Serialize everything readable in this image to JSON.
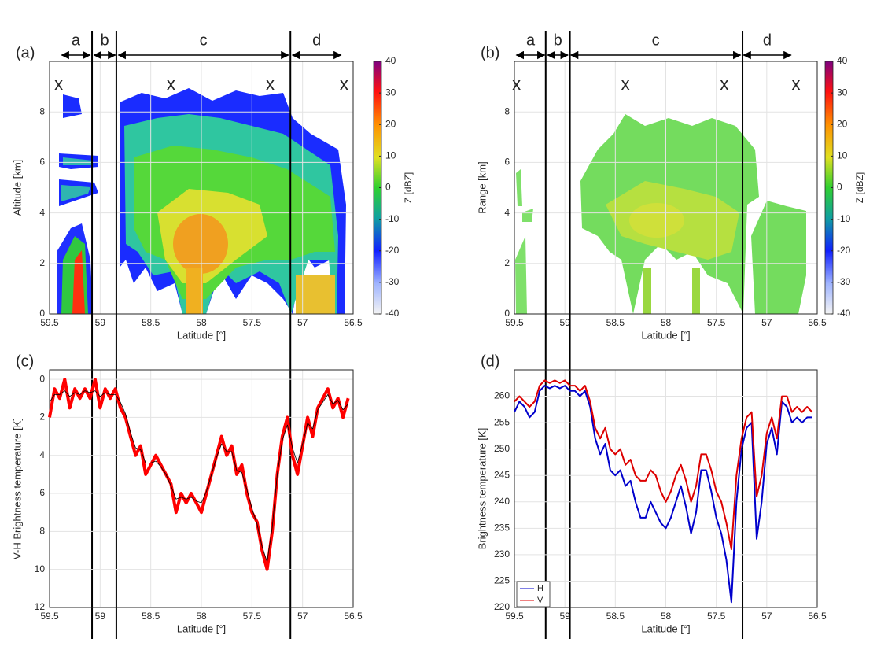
{
  "chart_data": [
    {
      "type": "heatmap",
      "title": "(a)",
      "xlabel": "Latitude [°]",
      "ylabel": "Altitude [km]",
      "xlim": [
        59.5,
        56.5
      ],
      "xticks": [
        59.5,
        59,
        58.5,
        58,
        57.5,
        57,
        56.5
      ],
      "ylim": [
        0,
        10
      ],
      "yticks": [
        0,
        2,
        4,
        6,
        8
      ],
      "grid": true,
      "colorbar": {
        "label": "Z [dBZ]",
        "lim": [
          -40,
          40
        ],
        "ticks": [
          -40,
          -30,
          -20,
          -10,
          0,
          10,
          20,
          30,
          40
        ]
      },
      "segments": [
        {
          "label": "a",
          "from": 59.38,
          "to": 59.1
        },
        {
          "label": "b",
          "from": 59.06,
          "to": 58.85
        },
        {
          "label": "c",
          "from": 58.82,
          "to": 57.14
        },
        {
          "label": "d",
          "from": 57.1,
          "to": 56.62
        }
      ],
      "boundaries": [
        59.08,
        58.84,
        57.12
      ],
      "markers": [
        {
          "label": "x",
          "x": 59.41
        },
        {
          "label": "x",
          "x": 58.3
        },
        {
          "label": "x",
          "x": 57.32
        },
        {
          "label": "x",
          "x": 56.59
        }
      ]
    },
    {
      "type": "heatmap",
      "title": "(b)",
      "xlabel": "Latitude [°]",
      "ylabel": "Range [km]",
      "xlim": [
        59.5,
        56.5
      ],
      "xticks": [
        59.5,
        59,
        58.5,
        58,
        57.5,
        57,
        56.5
      ],
      "ylim": [
        0,
        10
      ],
      "yticks": [
        0,
        2,
        4,
        6,
        8
      ],
      "grid": true,
      "colorbar": {
        "label": "Z [dBZ]",
        "lim": [
          -40,
          40
        ],
        "ticks": [
          -40,
          -30,
          -20,
          -10,
          0,
          10,
          20,
          30,
          40
        ]
      },
      "segments": [
        {
          "label": "a",
          "from": 59.48,
          "to": 59.2
        },
        {
          "label": "b",
          "from": 59.17,
          "to": 58.97
        },
        {
          "label": "c",
          "from": 58.94,
          "to": 57.26
        },
        {
          "label": "d",
          "from": 57.23,
          "to": 56.76
        }
      ],
      "boundaries": [
        59.19,
        58.95,
        57.24
      ],
      "markers": [
        {
          "label": "x",
          "x": 59.48
        },
        {
          "label": "x",
          "x": 58.4
        },
        {
          "label": "x",
          "x": 57.42
        },
        {
          "label": "x",
          "x": 56.71
        }
      ]
    },
    {
      "type": "line",
      "title": "(c)",
      "xlabel": "Latitude [°]",
      "ylabel": "V-H Brightness temperature [K]",
      "xlim": [
        59.5,
        56.5
      ],
      "xticks": [
        59.5,
        59,
        58.5,
        58,
        57.5,
        57,
        56.5
      ],
      "ylim": [
        -0.5,
        12
      ],
      "y_inverted": true,
      "yticks": [
        0,
        2,
        4,
        6,
        8,
        10,
        12
      ],
      "grid": true,
      "x": [
        59.5,
        59.45,
        59.4,
        59.35,
        59.3,
        59.25,
        59.2,
        59.15,
        59.1,
        59.05,
        59.0,
        58.95,
        58.9,
        58.85,
        58.8,
        58.75,
        58.7,
        58.65,
        58.6,
        58.55,
        58.5,
        58.45,
        58.4,
        58.35,
        58.3,
        58.25,
        58.2,
        58.15,
        58.1,
        58.05,
        58.0,
        57.95,
        57.9,
        57.85,
        57.8,
        57.75,
        57.7,
        57.65,
        57.6,
        57.55,
        57.5,
        57.45,
        57.4,
        57.35,
        57.3,
        57.25,
        57.2,
        57.15,
        57.1,
        57.05,
        57.0,
        56.95,
        56.9,
        56.85,
        56.8,
        56.75,
        56.7,
        56.65,
        56.6,
        56.55
      ],
      "series": [
        {
          "color": "#ff0000",
          "values": [
            2,
            0.5,
            1,
            0,
            1.5,
            0.5,
            1,
            0.5,
            1,
            0,
            1.5,
            0.5,
            1,
            0.5,
            1.5,
            2,
            3,
            4,
            3.5,
            5,
            4.5,
            4,
            4.5,
            5,
            5.5,
            7,
            6,
            6.5,
            6,
            6.5,
            7,
            6,
            5,
            4,
            3,
            4,
            3.5,
            5,
            4.5,
            6,
            7,
            7.5,
            9,
            10,
            8,
            5,
            3,
            2,
            4,
            5,
            3.5,
            2,
            3,
            1.5,
            1,
            0.5,
            1.5,
            1,
            2,
            1
          ]
        },
        {
          "color": "#000000",
          "values": [
            1.2,
            0.8,
            0.8,
            0.6,
            0.9,
            0.7,
            0.8,
            0.6,
            0.7,
            0.6,
            0.9,
            0.7,
            0.8,
            0.8,
            1.2,
            1.8,
            2.8,
            3.6,
            3.7,
            4.4,
            4.4,
            4.3,
            4.6,
            5.0,
            5.6,
            6.3,
            6.2,
            6.3,
            6.2,
            6.4,
            6.5,
            5.9,
            5.0,
            4.1,
            3.4,
            3.8,
            3.8,
            4.8,
            4.9,
            5.8,
            6.8,
            7.6,
            8.8,
            9.6,
            7.8,
            5.0,
            3.2,
            2.4,
            3.6,
            4.4,
            3.4,
            2.3,
            2.6,
            1.6,
            1.2,
            0.8,
            1.3,
            1.1,
            1.6,
            1.3
          ]
        }
      ]
    },
    {
      "type": "line",
      "title": "(d)",
      "xlabel": "Latitude [°]",
      "ylabel": "Brightness temperature [K]",
      "xlim": [
        59.5,
        56.5
      ],
      "xticks": [
        59.5,
        59,
        58.5,
        58,
        57.5,
        57,
        56.5
      ],
      "ylim": [
        220,
        265
      ],
      "yticks": [
        220,
        225,
        230,
        235,
        240,
        245,
        250,
        255,
        260
      ],
      "grid": true,
      "legend": "lower left",
      "x": [
        59.5,
        59.45,
        59.4,
        59.35,
        59.3,
        59.25,
        59.2,
        59.15,
        59.1,
        59.05,
        59.0,
        58.95,
        58.9,
        58.85,
        58.8,
        58.75,
        58.7,
        58.65,
        58.6,
        58.55,
        58.5,
        58.45,
        58.4,
        58.35,
        58.3,
        58.25,
        58.2,
        58.15,
        58.1,
        58.05,
        58.0,
        57.95,
        57.9,
        57.85,
        57.8,
        57.75,
        57.7,
        57.65,
        57.6,
        57.55,
        57.5,
        57.45,
        57.4,
        57.35,
        57.3,
        57.25,
        57.2,
        57.15,
        57.1,
        57.05,
        57.0,
        56.95,
        56.9,
        56.85,
        56.8,
        56.75,
        56.7,
        56.65,
        56.6,
        56.55
      ],
      "series": [
        {
          "name": "H",
          "color": "#0000cc",
          "values": [
            257,
            259,
            258,
            256,
            257,
            261,
            262,
            261.5,
            262,
            261.5,
            262,
            261,
            261,
            260,
            261,
            258,
            252,
            249,
            251,
            246,
            245,
            246,
            243,
            244,
            240,
            237,
            237,
            240,
            238,
            236,
            235,
            237,
            240,
            243,
            239,
            234,
            238,
            246,
            246,
            242,
            237,
            234,
            229,
            221,
            240,
            250,
            254,
            255,
            233,
            240,
            251,
            254,
            249,
            259,
            258,
            255,
            256,
            255,
            256,
            256
          ]
        },
        {
          "name": "V",
          "color": "#dd0000",
          "values": [
            259,
            260,
            259,
            258,
            259,
            262,
            263,
            262.5,
            263,
            262.5,
            263,
            262,
            262,
            261,
            262,
            259,
            254,
            252,
            254,
            250,
            249,
            250,
            247,
            248,
            245,
            244,
            244,
            246,
            245,
            242,
            240,
            242,
            245,
            247,
            244,
            240,
            243,
            249,
            249,
            246,
            242,
            240,
            236,
            231,
            245,
            252,
            256,
            257,
            241,
            245,
            253,
            256,
            252,
            260,
            260,
            257,
            258,
            257,
            258,
            257
          ]
        }
      ]
    }
  ]
}
